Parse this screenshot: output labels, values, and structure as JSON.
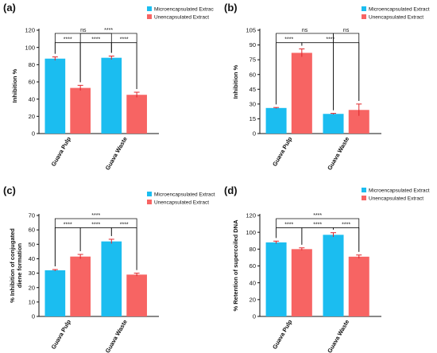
{
  "colors": {
    "micro": "#1BBDF0",
    "unenc": "#F76463",
    "error": "#E0262B",
    "axis": "#111111"
  },
  "chart_data": [
    {
      "panel": "(a)",
      "type": "bar",
      "ylabel": "Inhibition %",
      "ylim": [
        0,
        120
      ],
      "yticks": [
        0,
        20,
        40,
        60,
        80,
        100,
        120
      ],
      "categories": [
        "Guava Pulp",
        "Guava Waste"
      ],
      "series": [
        {
          "name": "Microencapsulated Extrac",
          "values": [
            87,
            88
          ],
          "errors": [
            2,
            2
          ]
        },
        {
          "name": "Unencapsulated Extract",
          "values": [
            53,
            45
          ],
          "errors": [
            3,
            3
          ]
        }
      ],
      "brackets": [
        {
          "from": 0,
          "to": 1,
          "label": "****",
          "level": 1
        },
        {
          "from": 1,
          "to": 2,
          "label": "****",
          "level": 1
        },
        {
          "from": 2,
          "to": 3,
          "label": "****",
          "level": 1
        },
        {
          "from": 0,
          "to": 2,
          "label": "ns",
          "level": 2
        },
        {
          "from": 1,
          "to": 3,
          "label": "****",
          "level": 2
        }
      ]
    },
    {
      "panel": "(b)",
      "type": "bar",
      "ylabel": "Inhibition %",
      "ylim": [
        0,
        105
      ],
      "yticks": [
        0,
        15,
        30,
        45,
        60,
        75,
        90,
        105
      ],
      "categories": [
        "Guava Pulp",
        "Guava Waste"
      ],
      "series": [
        {
          "name": "Microencapsulated Extract",
          "values": [
            26,
            20
          ],
          "errors": [
            0.5,
            0.5
          ]
        },
        {
          "name": "Unencapsulated Extract",
          "values": [
            82,
            24
          ],
          "errors": [
            4,
            6
          ]
        }
      ],
      "brackets": [
        {
          "from": 0,
          "to": 1,
          "label": "****",
          "level": 1
        },
        {
          "from": 1,
          "to": 3,
          "label": "****",
          "level": 1
        },
        {
          "from": 0,
          "to": 2,
          "label": "ns",
          "level": 2
        },
        {
          "from": 2,
          "to": 3,
          "label": "ns",
          "level": 2
        }
      ]
    },
    {
      "panel": "(c)",
      "type": "bar",
      "ylabel": "% Inhibition of conjugated diene formation",
      "ylim": [
        0,
        70
      ],
      "yticks": [
        0,
        10,
        20,
        30,
        40,
        50,
        60,
        70
      ],
      "categories": [
        "Guava Pulp",
        "Guava Waste"
      ],
      "series": [
        {
          "name": "Microencapsulated Extract",
          "values": [
            32,
            52
          ],
          "errors": [
            0.5,
            1.5
          ]
        },
        {
          "name": "Unencapsulated Extract",
          "values": [
            41.5,
            29
          ],
          "errors": [
            1.5,
            1
          ]
        }
      ],
      "brackets": [
        {
          "from": 0,
          "to": 1,
          "label": "****",
          "level": 1
        },
        {
          "from": 1,
          "to": 2,
          "label": "****",
          "level": 1
        },
        {
          "from": 2,
          "to": 3,
          "label": "****",
          "level": 1
        },
        {
          "from": 0,
          "to": 3,
          "label": "****",
          "level": 2
        }
      ]
    },
    {
      "panel": "(d)",
      "type": "bar",
      "ylabel": "% Retention of supercoiled DNA",
      "ylim": [
        0,
        120
      ],
      "yticks": [
        0,
        20,
        40,
        60,
        80,
        100,
        120
      ],
      "categories": [
        "Guava Pulp",
        "Guava Waste"
      ],
      "series": [
        {
          "name": "Microencapsulated Extract",
          "values": [
            88,
            97
          ],
          "errors": [
            1.5,
            2.5
          ]
        },
        {
          "name": "Unencapsulated Extract",
          "values": [
            80,
            71
          ],
          "errors": [
            1.5,
            2
          ]
        }
      ],
      "brackets": [
        {
          "from": 0,
          "to": 1,
          "label": "****",
          "level": 1
        },
        {
          "from": 1,
          "to": 2,
          "label": "****",
          "level": 1
        },
        {
          "from": 2,
          "to": 3,
          "label": "****",
          "level": 1
        },
        {
          "from": 0,
          "to": 3,
          "label": "****",
          "level": 2
        }
      ]
    }
  ]
}
